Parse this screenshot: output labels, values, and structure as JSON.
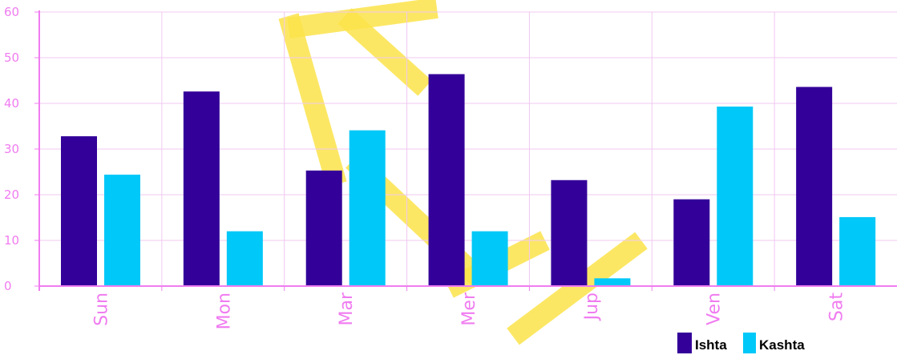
{
  "colors": {
    "ishta": "#330099",
    "kashta": "#00c8f8",
    "grid": "#f0c8f0",
    "axis": "#f07cf0",
    "tick_text": "#f07cf0",
    "watermark": "#fbe34a"
  },
  "chart_data": {
    "type": "bar",
    "title": "",
    "xlabel": "",
    "ylabel": "",
    "categories": [
      "Sun",
      "Mon",
      "Mar",
      "Mer",
      "Jup",
      "Ven",
      "Sat"
    ],
    "series": [
      {
        "name": "Ishta",
        "values": [
          32.8,
          42.6,
          25.3,
          46.4,
          23.2,
          19.0,
          43.6
        ]
      },
      {
        "name": "Kashta",
        "values": [
          24.4,
          12.0,
          34.1,
          12.0,
          1.7,
          39.3,
          15.1
        ]
      }
    ],
    "ylim": [
      0,
      60
    ],
    "yticks": [
      0,
      10,
      20,
      30,
      40,
      50,
      60
    ],
    "grid": true,
    "legend_position": "bottom-right",
    "category_label_rotation": "vertical"
  }
}
